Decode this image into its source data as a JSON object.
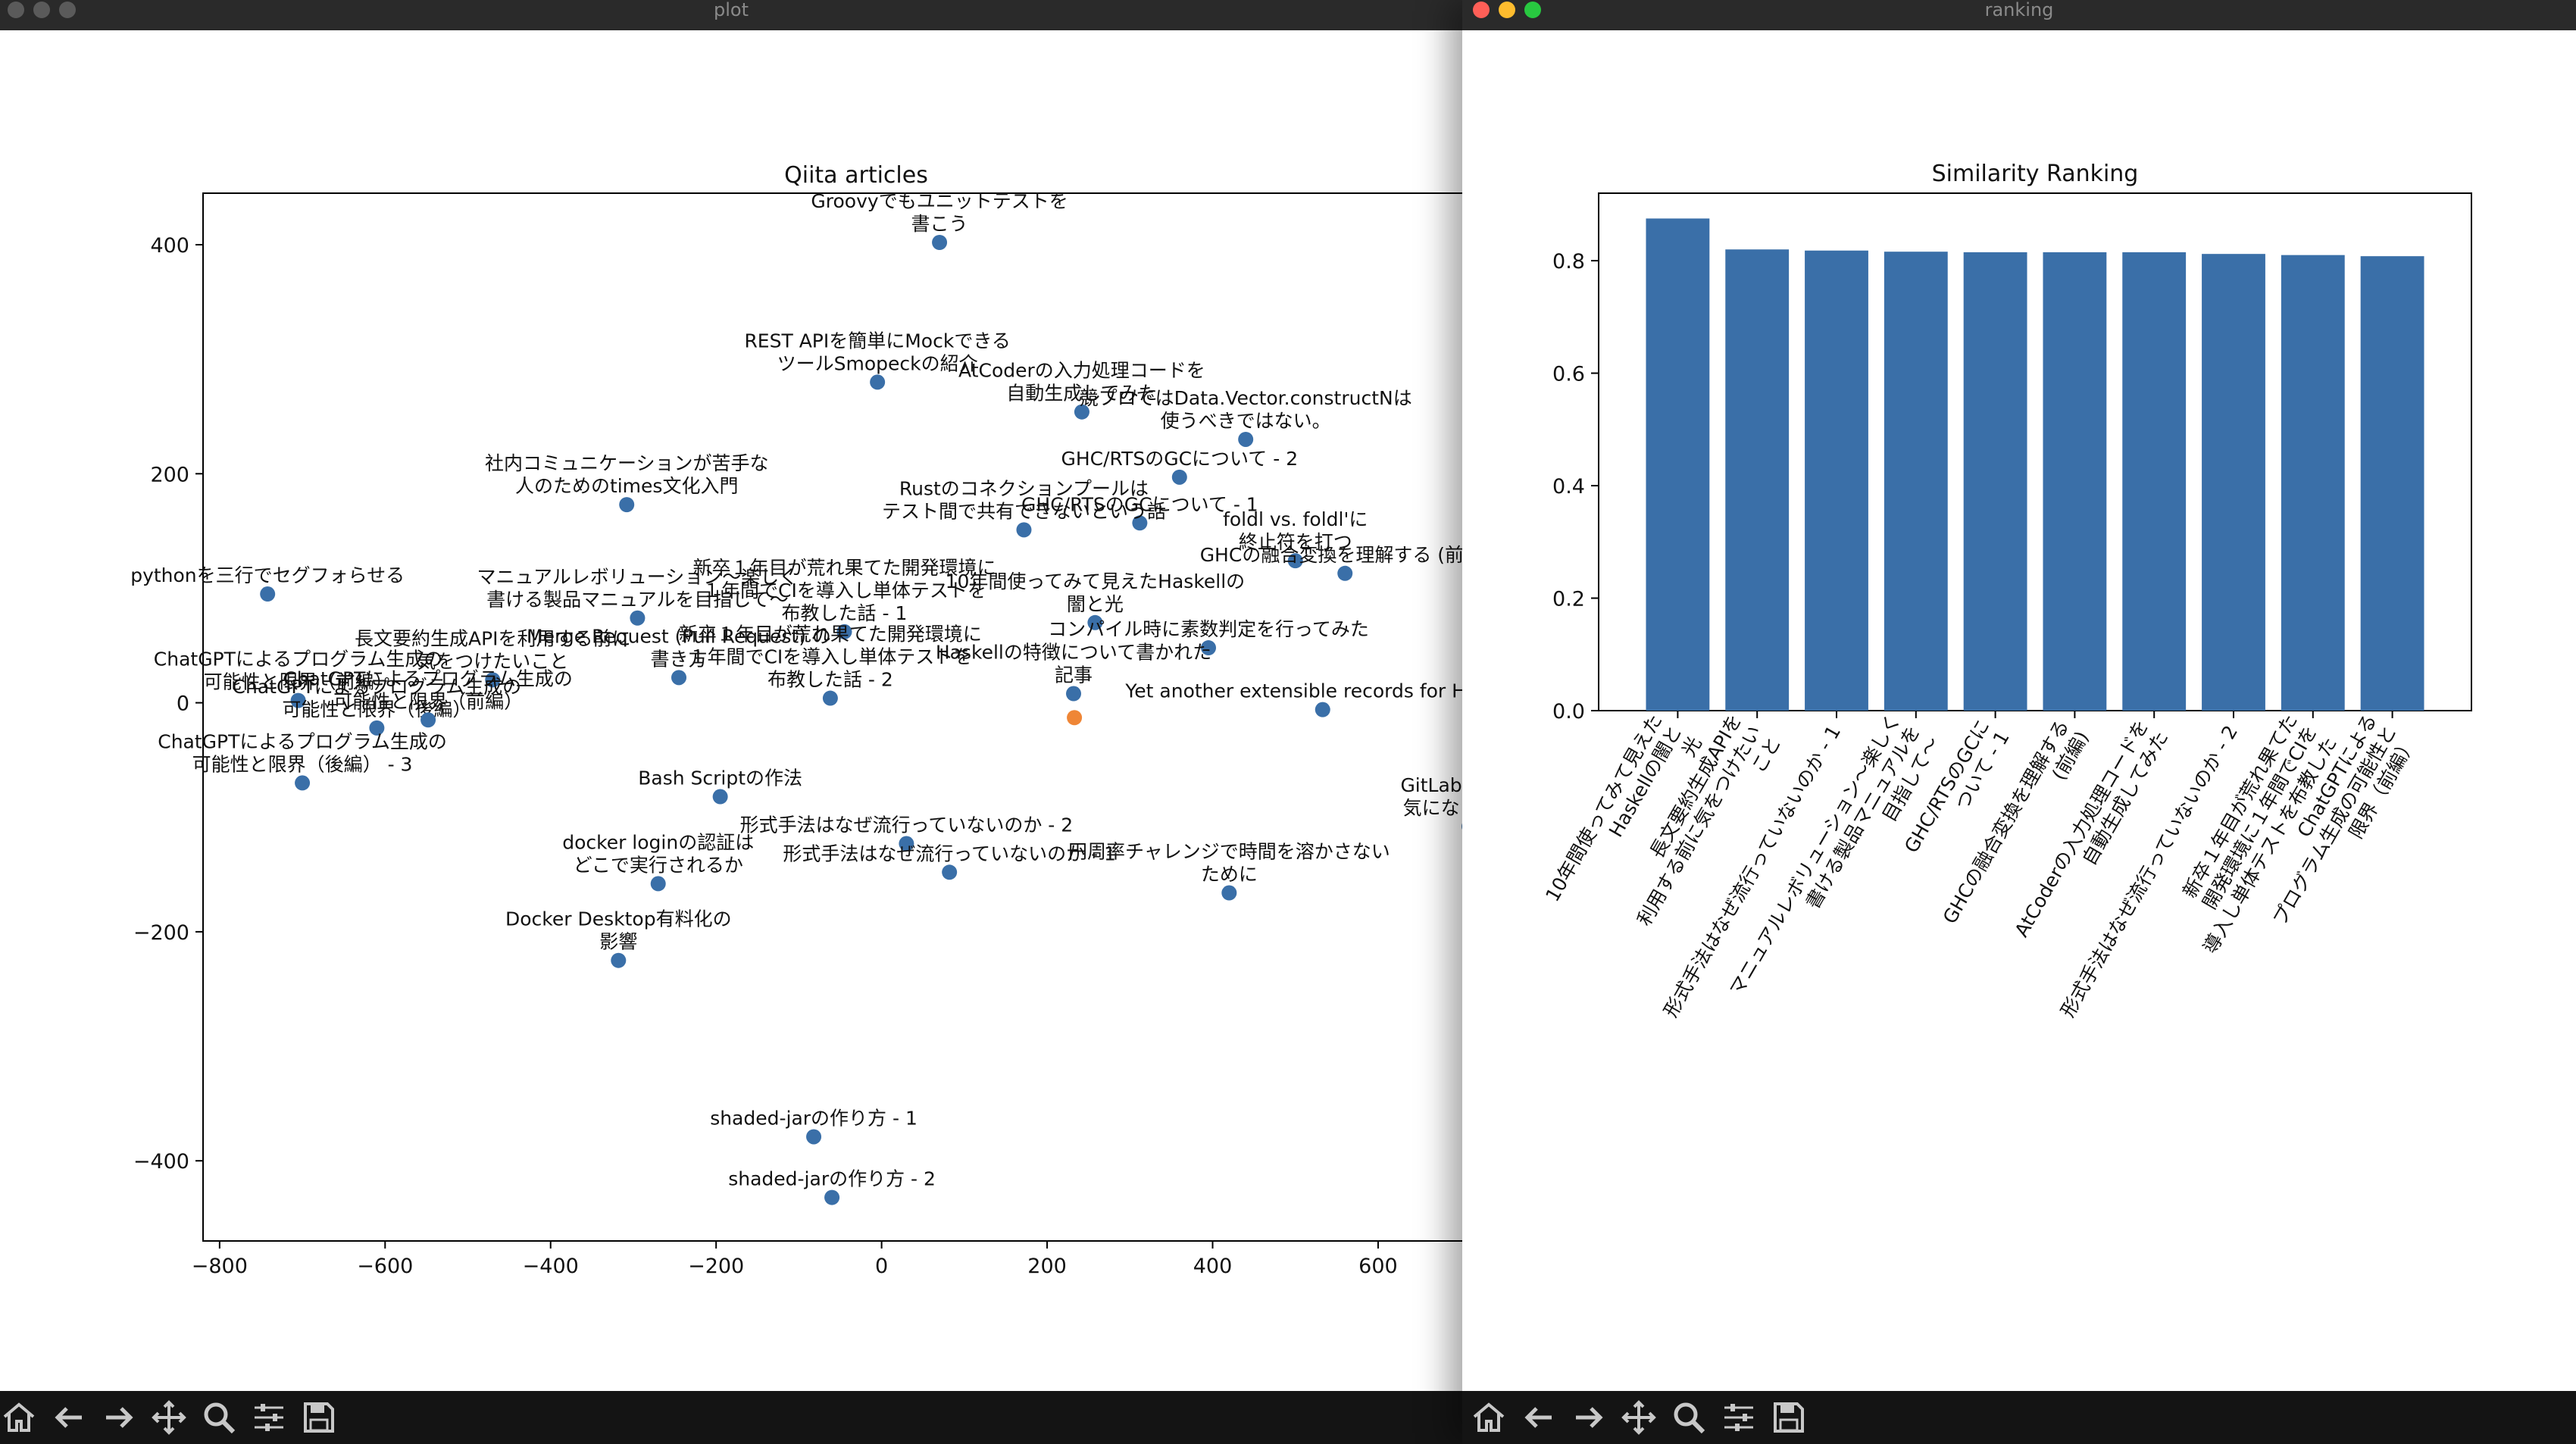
{
  "windows": {
    "plot": {
      "title": "plot"
    },
    "ranking": {
      "title": "ranking"
    }
  },
  "toolbar_icons": [
    "home-icon",
    "back-icon",
    "forward-icon",
    "pan-icon",
    "zoom-icon",
    "configure-subplots-icon",
    "save-icon"
  ],
  "chart_data": [
    {
      "type": "scatter",
      "title": "Qiita articles",
      "xlim": [
        -820,
        720
      ],
      "ylim": [
        -470,
        445
      ],
      "xticks": [
        -800,
        -600,
        -400,
        -200,
        0,
        200,
        400,
        600
      ],
      "yticks": [
        -400,
        -200,
        0,
        200,
        400
      ],
      "colors": {
        "points": "#3a6fa8",
        "highlight": "#ef8636"
      },
      "points": [
        {
          "x": 70,
          "y": 402,
          "label": "Groovyでもユニットテストを\n書こう"
        },
        {
          "x": -5,
          "y": 280,
          "label": "REST APIを簡単にMockできる\nツールSmopeckの紹介"
        },
        {
          "x": 242,
          "y": 254,
          "label": "AtCoderの入力処理コードを\n自動生成してみた"
        },
        {
          "x": 440,
          "y": 230,
          "label": "競プロではData.Vector.constructNは\n使うべきではない。"
        },
        {
          "x": 360,
          "y": 197,
          "label": "GHC/RTSのGCについて - 2"
        },
        {
          "x": -308,
          "y": 173,
          "label": "社内コミュニケーションが苦手な\n人のためのtimes文化入門"
        },
        {
          "x": 312,
          "y": 157,
          "label": "GHC/RTSのGCについて - 1"
        },
        {
          "x": 172,
          "y": 151,
          "label": "Rustのコネクションプールは\nテスト間で共有できないという話"
        },
        {
          "x": 500,
          "y": 124,
          "label": "foldl vs. foldl'に\n終止符を打つ"
        },
        {
          "x": 560,
          "y": 113,
          "label": "GHCの融合変換を理解する (前編)"
        },
        {
          "x": -742,
          "y": 95,
          "label": "pythonを三行でセグフォらせる"
        },
        {
          "x": 258,
          "y": 70,
          "label": "10年間使ってみて見えたHaskellの\n闇と光"
        },
        {
          "x": -295,
          "y": 74,
          "label": "マニュアルレボリューション〜楽しく\n書ける製品マニュアルを目指して〜"
        },
        {
          "x": -45,
          "y": 62,
          "label": "新卒１年目が荒れ果てた開発環境に\n１年間でCIを導入し単体テストを\n布教した話 - 1"
        },
        {
          "x": 395,
          "y": 48,
          "label": "コンパイル時に素数判定を行ってみた"
        },
        {
          "x": -245,
          "y": 22,
          "label": "Merge Request (Pull Request) の\n書き方"
        },
        {
          "x": -62,
          "y": 4,
          "label": "新卒１年目が荒れ果てた開発環境に\n１年間でCIを導入し単体テストを\n布教した話 - 2"
        },
        {
          "x": 232,
          "y": 8,
          "label": "Haskellの特徴について書かれた\n記事"
        },
        {
          "x": -470,
          "y": 20,
          "label": "長文要約生成APIを利用する前に\n気をつけたいこと"
        },
        {
          "x": -705,
          "y": 2,
          "label": "ChatGPTによるプログラム生成の\n可能性と限界（前編）"
        },
        {
          "x": -610,
          "y": -22,
          "label": "ChatGPTによるプログラム生成の\n可能性と限界（後編）"
        },
        {
          "x": -548,
          "y": -15,
          "label": "ChatGPTによるプログラム生成の\n可能性と限界（前編）"
        },
        {
          "x": -700,
          "y": -70,
          "label": "ChatGPTによるプログラム生成の\n可能性と限界（後編） - 3"
        },
        {
          "x": 533,
          "y": -6,
          "label": "Yet another extensible records for Haskell"
        },
        {
          "x": -195,
          "y": -82,
          "label": "Bash Scriptの作法"
        },
        {
          "x": 30,
          "y": -123,
          "label": "形式手法はなぜ流行っていないのか - 2"
        },
        {
          "x": 82,
          "y": -148,
          "label": "形式手法はなぜ流行っていないのか - 1"
        },
        {
          "x": -270,
          "y": -158,
          "label": "docker loginの認証は\nどこで実行されるか"
        },
        {
          "x": 420,
          "y": -166,
          "label": "円周率チャレンジで時間を溶かさない\nために"
        },
        {
          "x": 710,
          "y": -108,
          "label": "GitLabのストレ\n気になったので"
        },
        {
          "x": -318,
          "y": -225,
          "label": "Docker Desktop有料化の\n影響"
        },
        {
          "x": -82,
          "y": -379,
          "label": "shaded-jarの作り方 - 1"
        },
        {
          "x": -60,
          "y": -432,
          "label": "shaded-jarの作り方 - 2"
        },
        {
          "x": 233,
          "y": -13,
          "label": "",
          "highlight": true
        }
      ]
    },
    {
      "type": "bar",
      "title": "Similarity Ranking",
      "ylim": [
        0,
        0.92
      ],
      "yticks": [
        0.0,
        0.2,
        0.4,
        0.6,
        0.8
      ],
      "colors": {
        "bars": "#3a6fa8"
      },
      "categories": [
        "10年間使ってみて見えた\nHaskellの闇と\n光",
        "長文要約生成APIを\n利用する前に気をつけたい\nこと",
        "形式手法はなぜ流行っていないのか - 1",
        "マニュアルレボリューション〜楽しく\n書ける製品マニュアルを\n目指して〜",
        "GHC/RTSのGCに\nついて - 1",
        "GHCの融合変換を理解する\n(前編)",
        "AtCoderの入力処理コードを\n自動生成してみた",
        "形式手法はなぜ流行っていないのか - 2",
        "新卒１年目が荒れ果てた\n開発環境に１年間でCIを\n導入し単体テストを布教した",
        "ChatGPTによる\nプログラム生成の可能性と\n限界（前編）"
      ],
      "values": [
        0.875,
        0.82,
        0.818,
        0.816,
        0.815,
        0.815,
        0.815,
        0.812,
        0.81,
        0.808
      ]
    }
  ]
}
